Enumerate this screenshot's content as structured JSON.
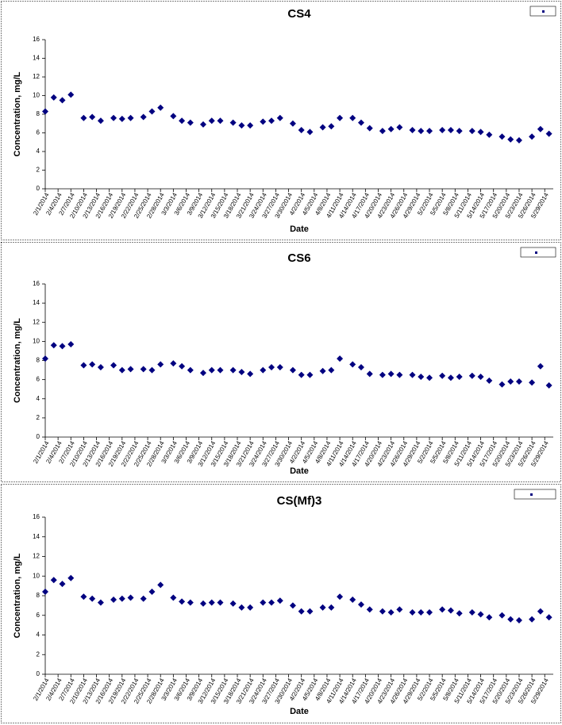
{
  "chart_data": [
    {
      "type": "scatter",
      "title": "CS4",
      "xlabel": "Date",
      "ylabel": "Concentration, mg/L",
      "color": "#000080",
      "x": [
        "2/1/2014",
        "2/3/2014",
        "2/5/2014",
        "2/7/2014",
        "2/10/2014",
        "2/12/2014",
        "2/14/2014",
        "2/17/2014",
        "2/19/2014",
        "2/21/2014",
        "2/24/2014",
        "2/26/2014",
        "2/28/2014",
        "3/3/2014",
        "3/5/2014",
        "3/7/2014",
        "3/10/2014",
        "3/12/2014",
        "3/14/2014",
        "3/17/2014",
        "3/19/2014",
        "3/21/2014",
        "3/24/2014",
        "3/26/2014",
        "3/28/2014",
        "3/31/2014",
        "4/2/2014",
        "4/4/2014",
        "4/7/2014",
        "4/9/2014",
        "4/11/2014",
        "4/14/2014",
        "4/16/2014",
        "4/18/2014",
        "4/21/2014",
        "4/23/2014",
        "4/25/2014",
        "4/28/2014",
        "4/30/2014",
        "5/2/2014",
        "5/5/2014",
        "5/7/2014",
        "5/9/2014",
        "5/12/2014",
        "5/14/2014",
        "5/16/2014",
        "5/19/2014",
        "5/21/2014",
        "5/23/2014",
        "5/26/2014",
        "5/28/2014",
        "5/30/2014"
      ],
      "values": [
        8.3,
        9.8,
        9.5,
        10.1,
        7.6,
        7.7,
        7.3,
        7.6,
        7.5,
        7.6,
        7.7,
        8.3,
        8.7,
        7.8,
        7.3,
        7.1,
        6.9,
        7.3,
        7.3,
        7.1,
        6.8,
        6.8,
        7.2,
        7.3,
        7.6,
        7.0,
        6.3,
        6.1,
        6.6,
        6.7,
        7.6,
        7.6,
        7.1,
        6.5,
        6.2,
        6.4,
        6.6,
        6.3,
        6.2,
        6.2,
        6.3,
        6.3,
        6.2,
        6.2,
        6.1,
        5.8,
        5.6,
        5.3,
        5.2,
        5.6,
        6.4,
        5.9
      ],
      "xlim": [
        "2/1/2014",
        "5/31/2014"
      ],
      "xticks": [
        "2/1/2014",
        "2/4/2014",
        "2/7/2014",
        "2/10/2014",
        "2/13/2014",
        "2/16/2014",
        "2/19/2014",
        "2/22/2014",
        "2/25/2014",
        "2/28/2014",
        "3/3/2014",
        "3/6/2014",
        "3/9/2014",
        "3/12/2014",
        "3/15/2014",
        "3/18/2014",
        "3/21/2014",
        "3/24/2014",
        "3/27/2014",
        "3/30/2014",
        "4/2/2014",
        "4/5/2014",
        "4/8/2014",
        "4/11/2014",
        "4/14/2014",
        "4/17/2014",
        "4/20/2014",
        "4/23/2014",
        "4/26/2014",
        "4/29/2014",
        "5/2/2014",
        "5/5/2014",
        "5/8/2014",
        "5/11/2014",
        "5/14/2014",
        "5/17/2014",
        "5/20/2014",
        "5/23/2014",
        "5/26/2014",
        "5/29/2014"
      ],
      "ylim": [
        0,
        16
      ],
      "yticks": [
        0,
        2,
        4,
        6,
        8,
        10,
        12,
        14,
        16
      ]
    },
    {
      "type": "scatter",
      "title": "CS6",
      "xlabel": "Date",
      "ylabel": "Concentration, mg/L",
      "color": "#000080",
      "x": [
        "2/1/2014",
        "2/3/2014",
        "2/5/2014",
        "2/7/2014",
        "2/10/2014",
        "2/12/2014",
        "2/14/2014",
        "2/17/2014",
        "2/19/2014",
        "2/21/2014",
        "2/24/2014",
        "2/26/2014",
        "2/28/2014",
        "3/3/2014",
        "3/5/2014",
        "3/7/2014",
        "3/10/2014",
        "3/12/2014",
        "3/14/2014",
        "3/17/2014",
        "3/19/2014",
        "3/21/2014",
        "3/24/2014",
        "3/26/2014",
        "3/28/2014",
        "3/31/2014",
        "4/2/2014",
        "4/4/2014",
        "4/7/2014",
        "4/9/2014",
        "4/11/2014",
        "4/14/2014",
        "4/16/2014",
        "4/18/2014",
        "4/21/2014",
        "4/23/2014",
        "4/25/2014",
        "4/28/2014",
        "4/30/2014",
        "5/2/2014",
        "5/5/2014",
        "5/7/2014",
        "5/9/2014",
        "5/12/2014",
        "5/14/2014",
        "5/16/2014",
        "5/19/2014",
        "5/21/2014",
        "5/23/2014",
        "5/26/2014",
        "5/28/2014",
        "5/30/2014"
      ],
      "values": [
        8.2,
        9.6,
        9.5,
        9.7,
        7.5,
        7.6,
        7.3,
        7.5,
        7.0,
        7.1,
        7.1,
        7.0,
        7.6,
        7.7,
        7.4,
        7.0,
        6.7,
        7.0,
        7.0,
        7.0,
        6.8,
        6.6,
        7.0,
        7.3,
        7.3,
        7.0,
        6.5,
        6.5,
        6.9,
        7.0,
        8.2,
        7.6,
        7.3,
        6.6,
        6.5,
        6.6,
        6.5,
        6.5,
        6.3,
        6.2,
        6.4,
        6.2,
        6.3,
        6.4,
        6.3,
        5.9,
        5.5,
        5.8,
        5.8,
        5.7,
        7.4,
        5.4
      ],
      "xlim": [
        "2/1/2014",
        "5/31/2014"
      ],
      "xticks": [
        "2/1/2014",
        "2/4/2014",
        "2/7/2014",
        "2/10/2014",
        "2/13/2014",
        "2/16/2014",
        "2/19/2014",
        "2/22/2014",
        "2/25/2014",
        "2/28/2014",
        "3/3/2014",
        "3/6/2014",
        "3/9/2014",
        "3/12/2014",
        "3/15/2014",
        "3/18/2014",
        "3/21/2014",
        "3/24/2014",
        "3/27/2014",
        "3/30/2014",
        "4/2/2014",
        "4/5/2014",
        "4/8/2014",
        "4/11/2014",
        "4/14/2014",
        "4/17/2014",
        "4/20/2014",
        "4/23/2014",
        "4/26/2014",
        "4/29/2014",
        "5/2/2014",
        "5/5/2014",
        "5/8/2014",
        "5/11/2014",
        "5/14/2014",
        "5/17/2014",
        "5/20/2014",
        "5/23/2014",
        "5/26/2014",
        "5/29/2014"
      ],
      "ylim": [
        0,
        16
      ],
      "yticks": [
        0,
        2,
        4,
        6,
        8,
        10,
        12,
        14,
        16
      ]
    },
    {
      "type": "scatter",
      "title": "CS(Mf)3",
      "xlabel": "Date",
      "ylabel": "Concentration, mg/L",
      "color": "#000080",
      "x": [
        "2/1/2014",
        "2/3/2014",
        "2/5/2014",
        "2/7/2014",
        "2/10/2014",
        "2/12/2014",
        "2/14/2014",
        "2/17/2014",
        "2/19/2014",
        "2/21/2014",
        "2/24/2014",
        "2/26/2014",
        "2/28/2014",
        "3/3/2014",
        "3/5/2014",
        "3/7/2014",
        "3/10/2014",
        "3/12/2014",
        "3/14/2014",
        "3/17/2014",
        "3/19/2014",
        "3/21/2014",
        "3/24/2014",
        "3/26/2014",
        "3/28/2014",
        "3/31/2014",
        "4/2/2014",
        "4/4/2014",
        "4/7/2014",
        "4/9/2014",
        "4/11/2014",
        "4/14/2014",
        "4/16/2014",
        "4/18/2014",
        "4/21/2014",
        "4/23/2014",
        "4/25/2014",
        "4/28/2014",
        "4/30/2014",
        "5/2/2014",
        "5/5/2014",
        "5/7/2014",
        "5/9/2014",
        "5/12/2014",
        "5/14/2014",
        "5/16/2014",
        "5/19/2014",
        "5/21/2014",
        "5/23/2014",
        "5/26/2014",
        "5/28/2014",
        "5/30/2014"
      ],
      "values": [
        8.4,
        9.6,
        9.2,
        9.8,
        7.9,
        7.7,
        7.3,
        7.6,
        7.7,
        7.8,
        7.7,
        8.4,
        9.1,
        7.8,
        7.4,
        7.3,
        7.2,
        7.3,
        7.3,
        7.2,
        6.8,
        6.8,
        7.3,
        7.3,
        7.5,
        7.0,
        6.4,
        6.4,
        6.8,
        6.8,
        7.9,
        7.6,
        7.1,
        6.6,
        6.4,
        6.3,
        6.6,
        6.3,
        6.3,
        6.3,
        6.6,
        6.5,
        6.2,
        6.3,
        6.1,
        5.8,
        6.0,
        5.6,
        5.5,
        5.6,
        6.4,
        5.8
      ],
      "xlim": [
        "2/1/2014",
        "5/31/2014"
      ],
      "xticks": [
        "2/1/2014",
        "2/4/2014",
        "2/7/2014",
        "2/10/2014",
        "2/13/2014",
        "2/16/2014",
        "2/19/2014",
        "2/22/2014",
        "2/25/2014",
        "2/28/2014",
        "3/3/2014",
        "3/6/2014",
        "3/9/2014",
        "3/12/2014",
        "3/15/2014",
        "3/18/2014",
        "3/21/2014",
        "3/24/2014",
        "3/27/2014",
        "3/30/2014",
        "4/2/2014",
        "4/5/2014",
        "4/8/2014",
        "4/11/2014",
        "4/14/2014",
        "4/17/2014",
        "4/20/2014",
        "4/23/2014",
        "4/26/2014",
        "4/29/2014",
        "5/2/2014",
        "5/5/2014",
        "5/8/2014",
        "5/11/2014",
        "5/14/2014",
        "5/17/2014",
        "5/20/2014",
        "5/23/2014",
        "5/26/2014",
        "5/29/2014"
      ],
      "ylim": [
        0,
        16
      ],
      "yticks": [
        0,
        2,
        4,
        6,
        8,
        10,
        12,
        14,
        16
      ]
    }
  ]
}
